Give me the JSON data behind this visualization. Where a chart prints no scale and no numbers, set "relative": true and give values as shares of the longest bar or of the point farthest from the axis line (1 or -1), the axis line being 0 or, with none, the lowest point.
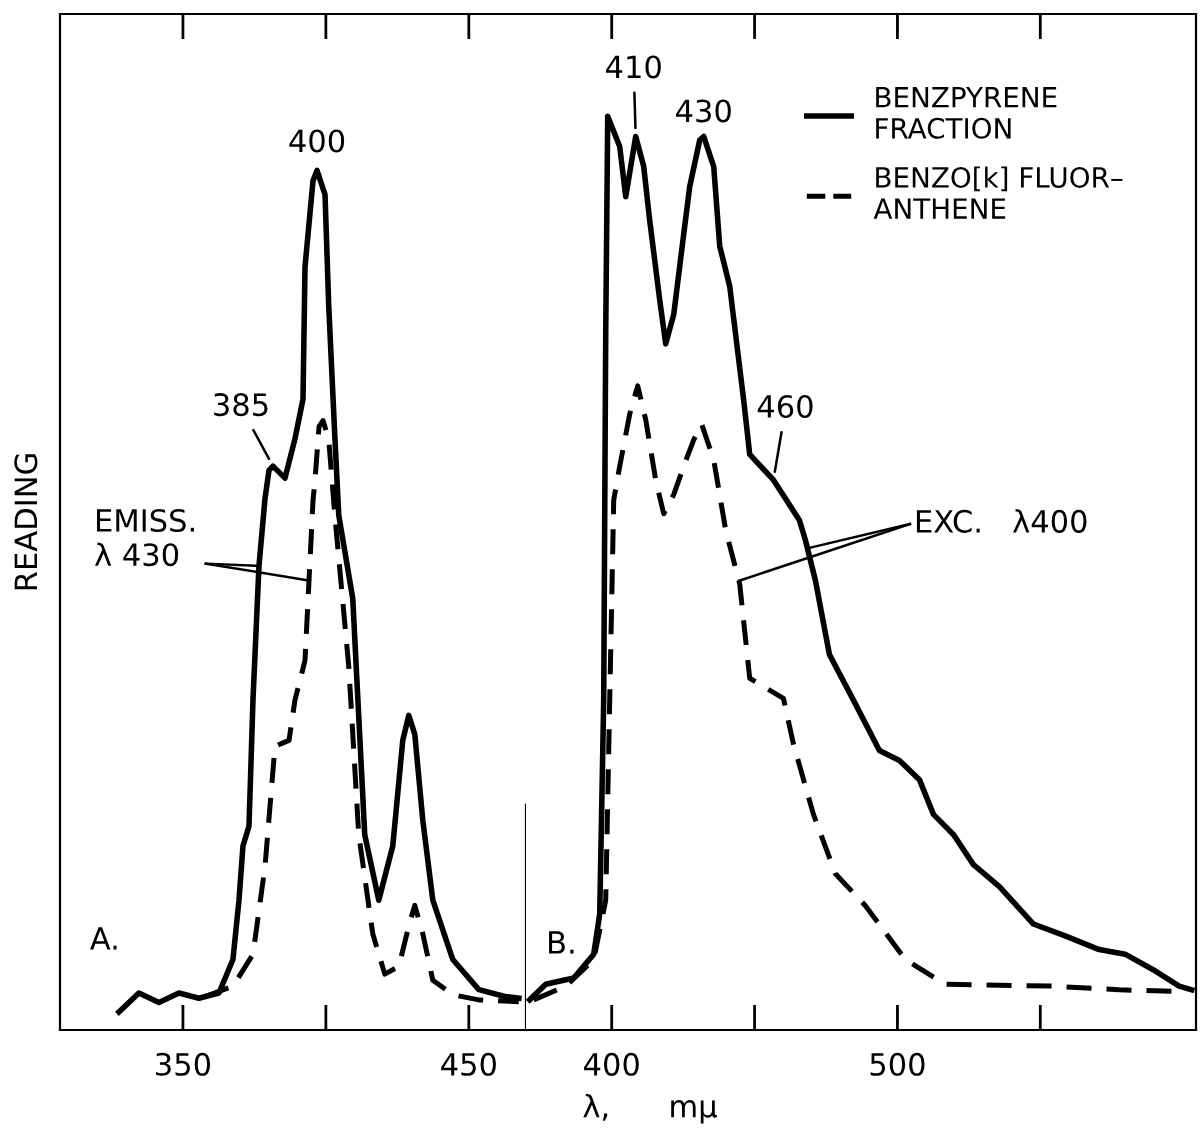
{
  "chart_data": [
    {
      "type": "line",
      "relative": true,
      "ylabel": "READING",
      "tick_labels": "x",
      "xlim": [
        307,
        470
      ],
      "xticks": [
        350,
        {
          "value": 400,
          "label": null
        },
        450
      ],
      "series": [
        {
          "color": "#000000",
          "line_style": "solid",
          "x": [
            327.6,
            334.6,
            341.6,
            348.6,
            355.6,
            362.6,
            367.5,
            369.6,
            371.0,
            373.1,
            374.5,
            376.6,
            378.7,
            380.1,
            381.5,
            385.7,
            389.2,
            392.0,
            392.7,
            395.5,
            396.9,
            399.7,
            401.0,
            403.1,
            404.5,
            409.4,
            413.6,
            418.5,
            423.4,
            426.9,
            429.0,
            431.1,
            433.9,
            437.4,
            444.4,
            453.5,
            462.6,
            467.5
          ],
          "values": [
            0.021,
            0.043,
            0.032,
            0.043,
            0.037,
            0.043,
            0.082,
            0.151,
            0.214,
            0.237,
            0.384,
            0.54,
            0.618,
            0.651,
            0.656,
            0.642,
            0.688,
            0.734,
            0.888,
            0.988,
            1.0,
            0.972,
            0.842,
            0.693,
            0.599,
            0.502,
            0.227,
            0.151,
            0.214,
            0.337,
            0.366,
            0.344,
            0.244,
            0.151,
            0.082,
            0.047,
            0.039,
            0.037
          ]
        },
        {
          "color": "#000000",
          "line_style": "dashed",
          "x": [
            357.7,
            367.5,
            374.5,
            378.7,
            382.2,
            387.1,
            389.2,
            392.7,
            394.1,
            395.5,
            396.2,
            397.6,
            399.0,
            401.0,
            403.1,
            408.0,
            411.5,
            416.4,
            420.6,
            425.5,
            429.0,
            431.1,
            433.9,
            437.4,
            444.4,
            453.5,
            467.5
          ],
          "values": [
            0.039,
            0.051,
            0.088,
            0.19,
            0.33,
            0.337,
            0.384,
            0.43,
            0.523,
            0.616,
            0.64,
            0.702,
            0.709,
            0.687,
            0.6,
            0.423,
            0.227,
            0.112,
            0.065,
            0.074,
            0.121,
            0.145,
            0.112,
            0.058,
            0.041,
            0.035,
            0.033
          ]
        }
      ],
      "annotations": [
        {
          "text": "400",
          "x": 396.9,
          "y": 1.0
        },
        {
          "text": "385",
          "x": 381.5,
          "y": 0.656
        },
        "EMISS.\nλ 430",
        "A."
      ]
    },
    {
      "type": "line",
      "relative": true,
      "xlabel": "λ,      mμ",
      "tick_labels": "x",
      "legend": "top right",
      "xlim": [
        370,
        604.5
      ],
      "xticks": [
        400,
        {
          "value": 450,
          "label": null
        },
        500,
        {
          "value": 550,
          "label": null
        }
      ],
      "series": [
        {
          "name": "BENZPYRENE\nFRACTION",
          "color": "#000000",
          "line_style": "solid",
          "x": [
            371.3,
            376.9,
            386.7,
            393.7,
            395.8,
            397.2,
            397.9,
            398.6,
            402.8,
            404.9,
            408.4,
            411.2,
            413.3,
            416.8,
            418.9,
            421.7,
            425.2,
            427.3,
            430.8,
            432.2,
            435.7,
            437.8,
            441.3,
            446.2,
            448.3,
            456.6,
            465.7,
            467.8,
            471.3,
            476.2,
            484.6,
            493.7,
            500.7,
            507.7,
            512.6,
            519.6,
            526.6,
            535.7,
            547.6,
            558.7,
            570.6,
            579.7,
            589.5,
            598.6,
            603.0
          ],
          "values": [
            0.033,
            0.05,
            0.057,
            0.083,
            0.127,
            0.361,
            0.761,
            1.0,
            0.967,
            0.912,
            0.978,
            0.945,
            0.886,
            0.799,
            0.751,
            0.783,
            0.871,
            0.923,
            0.974,
            0.978,
            0.945,
            0.858,
            0.814,
            0.689,
            0.63,
            0.602,
            0.558,
            0.536,
            0.492,
            0.411,
            0.361,
            0.306,
            0.295,
            0.274,
            0.236,
            0.214,
            0.181,
            0.157,
            0.116,
            0.103,
            0.088,
            0.083,
            0.066,
            0.048,
            0.044
          ]
        },
        {
          "name": "BENZO[k] FLUOR–\nANTHENE",
          "color": "#000000",
          "line_style": "dashed",
          "x": [
            372.7,
            383.9,
            393.7,
            397.9,
            399.3,
            400.7,
            402.8,
            406.3,
            409.1,
            411.9,
            415.4,
            418.2,
            421.7,
            425.2,
            428.7,
            431.5,
            435.7,
            439.9,
            444.8,
            448.3,
            460.1,
            463.6,
            470.6,
            478.3,
            488.8,
            502.8,
            516.8,
            554.5,
            577.6,
            600.7
          ],
          "values": [
            0.033,
            0.048,
            0.077,
            0.142,
            0.361,
            0.58,
            0.617,
            0.674,
            0.705,
            0.668,
            0.602,
            0.565,
            0.586,
            0.617,
            0.646,
            0.663,
            0.624,
            0.547,
            0.488,
            0.385,
            0.363,
            0.313,
            0.236,
            0.171,
            0.136,
            0.077,
            0.05,
            0.048,
            0.044,
            0.042
          ]
        }
      ],
      "annotations": [
        {
          "text": "410",
          "x": 408.4,
          "y": 0.978
        },
        {
          "text": "430",
          "x": 432.2,
          "y": 0.978
        },
        {
          "text": "460",
          "x": 456.6,
          "y": 0.602
        },
        "EXC.   λ400",
        "B."
      ]
    }
  ]
}
